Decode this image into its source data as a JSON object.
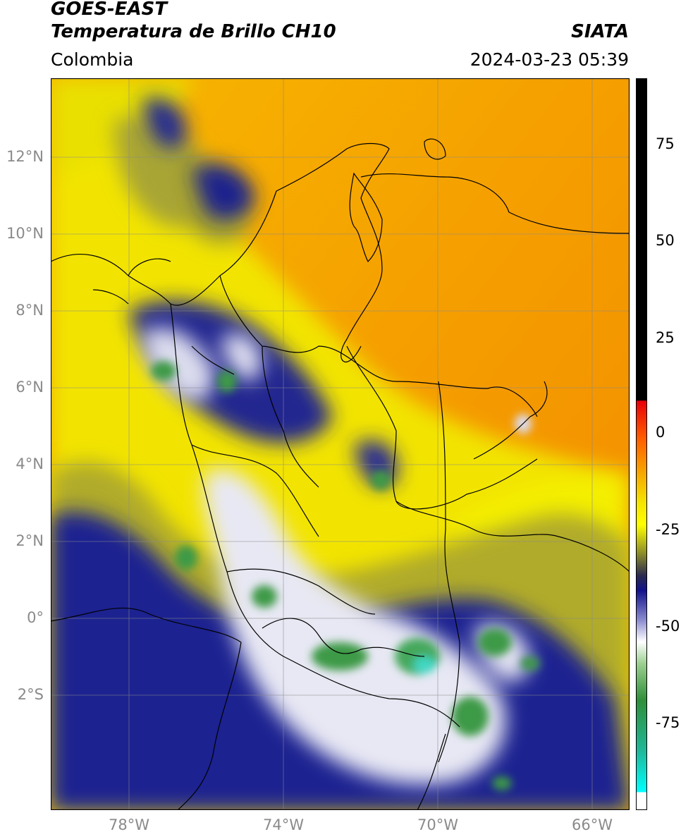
{
  "header": {
    "satellite": "GOES-EAST",
    "product": "Temperatura de Brillo CH10",
    "region": "Colombia",
    "organization": "SIATA",
    "datetime": "2024-03-23 05:39"
  },
  "map": {
    "lon_range": [
      -80,
      -65
    ],
    "lat_range": [
      -5,
      14
    ],
    "lat_labels": [
      "12°N",
      "10°N",
      "8°N",
      "6°N",
      "4°N",
      "2°N",
      "0°",
      "2°S"
    ],
    "lon_labels": [
      "78°W",
      "74°W",
      "70°W",
      "66°W"
    ],
    "colors": {
      "warm_orange": "#f59a00",
      "yellow": "#f0ea00",
      "olive": "#a6a231",
      "navy": "#1b1f8a",
      "white": "#ffffff",
      "green": "#3b9a45",
      "cyan": "#3fd7c2"
    }
  },
  "colorbar": {
    "ticks": [
      "75",
      "50",
      "25",
      "0",
      "-25",
      "-50",
      "-75"
    ],
    "range": [
      -95,
      90
    ]
  }
}
